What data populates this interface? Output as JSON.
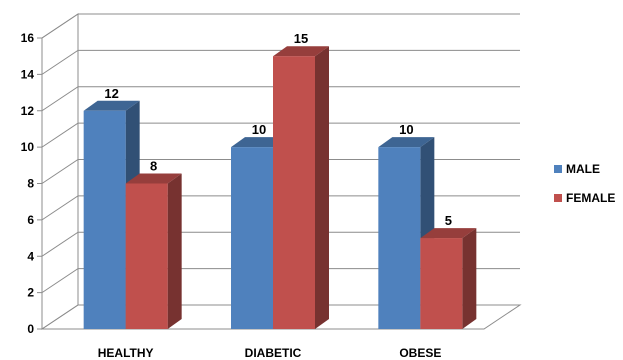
{
  "chart_data": {
    "type": "bar",
    "style": "3d-clustered-column",
    "categories": [
      "HEALTHY",
      "DIABETIC",
      "OBESE"
    ],
    "series": [
      {
        "name": "MALE",
        "values": [
          12,
          10,
          10
        ],
        "color": "#4F81BD"
      },
      {
        "name": "FEMALE",
        "values": [
          8,
          15,
          5
        ],
        "color": "#C0504D"
      }
    ],
    "ylim": [
      0,
      16
    ],
    "yticks": [
      0,
      2,
      4,
      6,
      8,
      10,
      12,
      14,
      16
    ],
    "grid": true,
    "legend": "right",
    "data_labels": true
  }
}
